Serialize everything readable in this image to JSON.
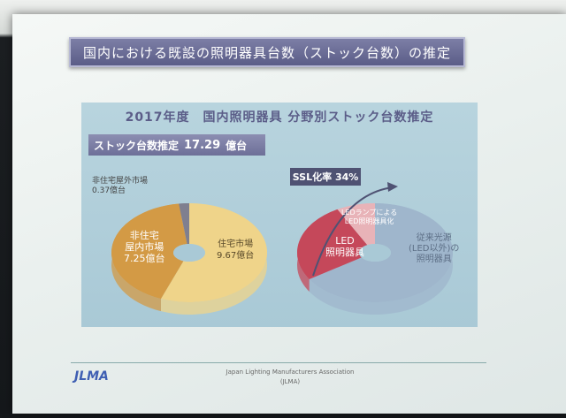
{
  "slide": {
    "title": "国内における既設の照明器具台数（ストック台数）の推定",
    "panel_title": "2017年度　国内照明器具 分野別ストック台数推定",
    "stock_label": "ストック台数推定",
    "stock_value": "17.29",
    "stock_unit": "億台",
    "ssl_label": "SSL化率",
    "ssl_value": "34%"
  },
  "left_pie": {
    "label_outdoor_1": "非住宅屋外市場",
    "label_outdoor_2": "0.37億台",
    "label_nonres_1": "非住宅",
    "label_nonres_2": "屋内市場",
    "label_nonres_3": "7.25億台",
    "label_res_1": "住宅市場",
    "label_res_2": "9.67億台"
  },
  "right_pie": {
    "label_lamp_1": "LEDランプによる",
    "label_lamp_2": "LED照明器具化",
    "label_led_1": "LED",
    "label_led_2": "照明器具",
    "label_conv_1": "従来光源",
    "label_conv_2": "(LED以外)の",
    "label_conv_3": "照明器具"
  },
  "footer": {
    "association": "Japan Lighting Manufacturers Association",
    "abbr": "(JLMA)",
    "logo": "JLMA"
  },
  "chart_data": [
    {
      "type": "pie",
      "title": "",
      "categories": [
        "住宅市場",
        "非住宅屋内市場",
        "非住宅屋外市場"
      ],
      "values": [
        9.67,
        7.25,
        0.37
      ]
    },
    {
      "type": "pie",
      "title": "",
      "categories": [
        "LED照明器具",
        "LEDランプによるLED照明器具化",
        "従来光源(LED以外)の照明器具"
      ],
      "values": [
        26,
        8,
        66
      ]
    }
  ],
  "colors": {
    "title_bg": "#6b6d97",
    "residential": "#efd48a",
    "nonres_indoor": "#d39a45",
    "outdoor": "#7f7f8f",
    "led": "#c5485a",
    "led_lamp": "#e8b3b8",
    "conventional": "#9fb6cc"
  }
}
